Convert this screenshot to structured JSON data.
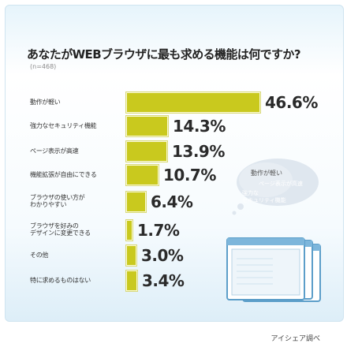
{
  "header": {
    "title": "あなたがWEBブラウザに最も求める機能は何ですか?",
    "sample": "(n=468)"
  },
  "chart_data": {
    "type": "bar",
    "title": "あなたがWEBブラウザに最も求める機能は何ですか?",
    "categories": [
      "動作が軽い",
      "強力なセキュリティ機能",
      "ページ表示が高速",
      "機能拡張が自由にできる",
      "ブラウザの使い方が\nわかりやすい",
      "ブラウザを好みの\nデザインに変更できる",
      "その他",
      "特に求めるものはない"
    ],
    "values": [
      46.6,
      14.3,
      13.9,
      10.7,
      6.4,
      1.7,
      3.0,
      3.4
    ],
    "value_labels": [
      "46.6%",
      "14.3%",
      "13.9%",
      "10.7%",
      "6.4%",
      "1.7%",
      "3.0%",
      "3.4%"
    ],
    "unit": "%",
    "xlim": [
      0,
      50
    ],
    "bar_color": "#c9c91e",
    "orientation": "horizontal",
    "grid": false,
    "legend": "none"
  },
  "bubble": {
    "items": [
      "動作が軽い",
      "ページ表示が高速",
      "強力な",
      "セキュリティ機能"
    ]
  },
  "credit": "アイシェア調べ",
  "colors": {
    "background": "#e6f4fb",
    "bar": "#c9c91e",
    "bubble": "#dfe7ef",
    "browser_frame": "#5c9ec9"
  }
}
